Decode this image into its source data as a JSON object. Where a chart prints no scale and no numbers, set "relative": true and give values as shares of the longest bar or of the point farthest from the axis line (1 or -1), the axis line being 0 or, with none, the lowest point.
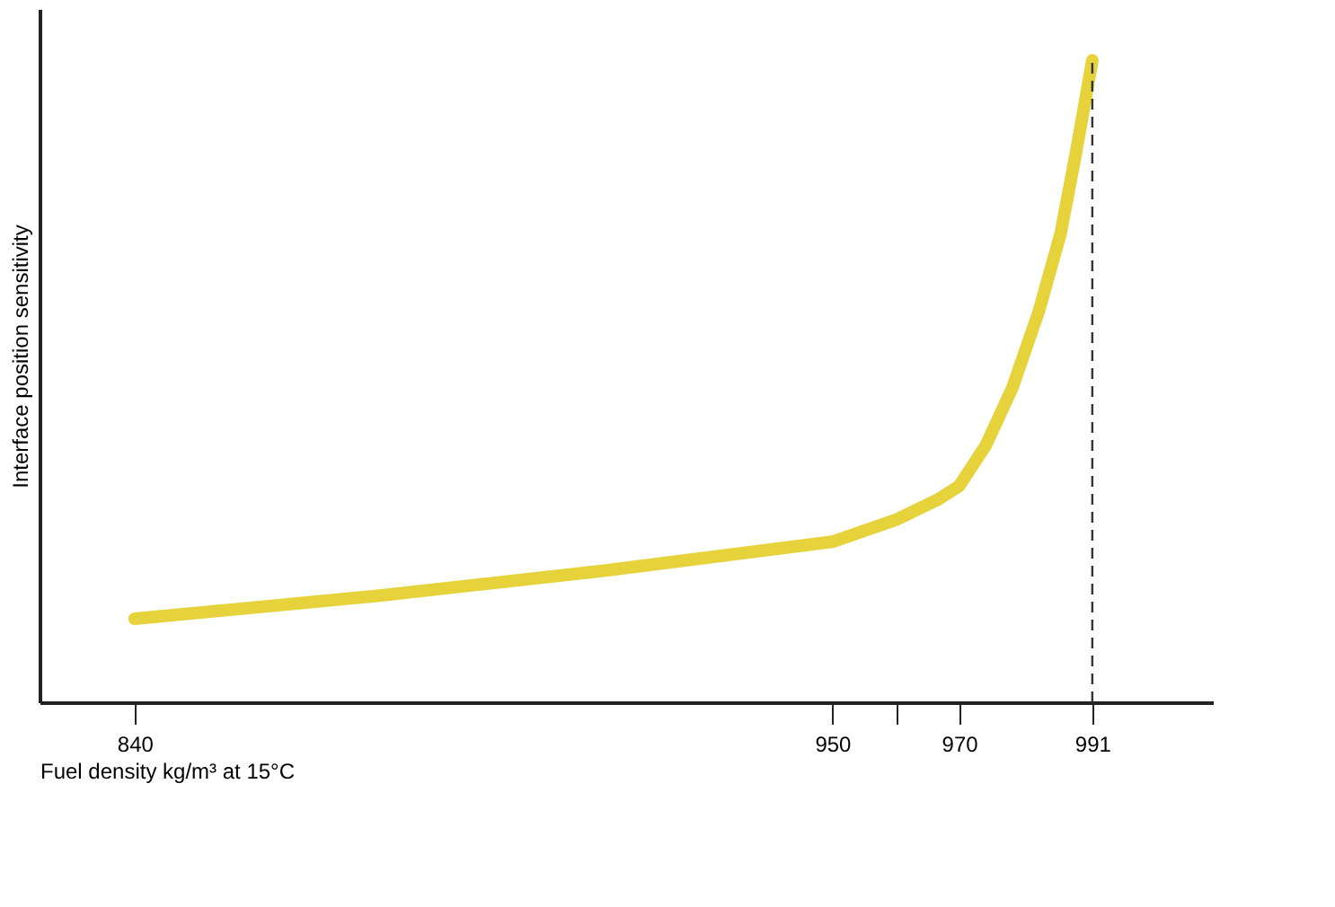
{
  "chart_data": {
    "type": "line",
    "relative": true,
    "xlabel": "Fuel density kg/m³ at 15°C",
    "ylabel": "Interface position sensitivity",
    "x": [
      840,
      878.6,
      914,
      950,
      960,
      966.7,
      970,
      974.2,
      978.4,
      982.6,
      986,
      988.5,
      991
    ],
    "series": [
      {
        "color": "#e6d33c",
        "values": [
          0.13,
          0.166,
          0.205,
          0.25,
          0.284,
          0.316,
          0.337,
          0.4,
          0.49,
          0.61,
          0.73,
          0.86,
          1.0
        ]
      }
    ],
    "xlim": [
      825,
      1010
    ],
    "xticks": [
      840,
      950,
      {
        "value": 960,
        "label": null
      },
      970,
      991
    ],
    "ref_lines": [
      {
        "axis": "x",
        "value": 991,
        "line_style": "dashed",
        "color": "#333333"
      }
    ],
    "grid": false,
    "marker": "none",
    "line_style": "solid"
  }
}
